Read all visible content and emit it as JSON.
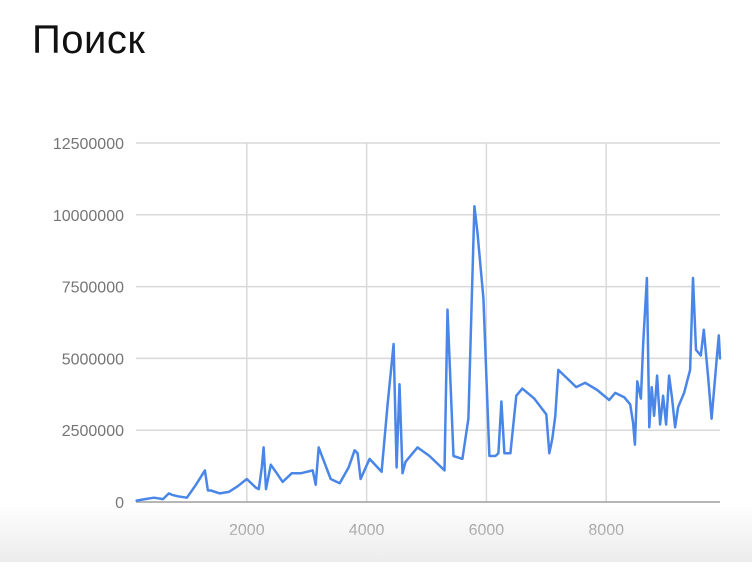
{
  "title": "Поиск",
  "chart_data": {
    "type": "line",
    "title": "Поиск",
    "xlabel": "",
    "ylabel": "",
    "xlim": [
      150,
      9900
    ],
    "ylim": [
      0,
      12500000
    ],
    "xticks": [
      2000,
      4000,
      6000,
      8000
    ],
    "xtick_labels": [
      "2000",
      "4000",
      "6000",
      "8000"
    ],
    "yticks": [
      0,
      2500000,
      5000000,
      7500000,
      10000000,
      12500000
    ],
    "ytick_labels": [
      "0",
      "2500000",
      "5000000",
      "7500000",
      "10000000",
      "12500000"
    ],
    "grid": true,
    "legend": "none",
    "line_color": "#4a86e8",
    "series": [
      {
        "x": [
          160,
          300,
          450,
          600,
          700,
          750,
          850,
          1000,
          1150,
          1300,
          1350,
          1400,
          1550,
          1700,
          1850,
          2000,
          2150,
          2200,
          2250,
          2280,
          2320,
          2400,
          2500,
          2600,
          2700,
          2750,
          2900,
          3100,
          3150,
          3200,
          3400,
          3550,
          3700,
          3800,
          3850,
          3900,
          4050,
          4250,
          4350,
          4450,
          4500,
          4550,
          4600,
          4650,
          4850,
          5050,
          5300,
          5350,
          5450,
          5600,
          5700,
          5800,
          5850,
          5950,
          6050,
          6150,
          6200,
          6250,
          6300,
          6350,
          6400,
          6500,
          6600,
          6800,
          7000,
          7050,
          7100,
          7150,
          7200,
          7350,
          7500,
          7650,
          7850,
          8050,
          8150,
          8300,
          8400,
          8450,
          8480,
          8520,
          8580,
          8620,
          8680,
          8720,
          8760,
          8800,
          8850,
          8900,
          8950,
          9000,
          9050,
          9100,
          9150,
          9200,
          9300,
          9400,
          9450,
          9500,
          9580,
          9630,
          9700,
          9760,
          9850,
          9880,
          9900
        ],
        "y": [
          50000,
          100000,
          150000,
          100000,
          300000,
          250000,
          200000,
          150000,
          600000,
          1100000,
          400000,
          400000,
          300000,
          350000,
          550000,
          800000,
          500000,
          450000,
          1200000,
          1900000,
          450000,
          1300000,
          1000000,
          700000,
          900000,
          1000000,
          1000000,
          1100000,
          600000,
          1900000,
          800000,
          650000,
          1200000,
          1800000,
          1700000,
          800000,
          1500000,
          1050000,
          3400000,
          5500000,
          1200000,
          4100000,
          1000000,
          1400000,
          1900000,
          1600000,
          1100000,
          6700000,
          1600000,
          1500000,
          2900000,
          10300000,
          9400000,
          7100000,
          1600000,
          1600000,
          1700000,
          3500000,
          1700000,
          1700000,
          1700000,
          3700000,
          3950000,
          3600000,
          3050000,
          1700000,
          2200000,
          3000000,
          4600000,
          4300000,
          4000000,
          4150000,
          3900000,
          3550000,
          3800000,
          3650000,
          3400000,
          2750000,
          2000000,
          4200000,
          3600000,
          5600000,
          7800000,
          2600000,
          4000000,
          3000000,
          4400000,
          2700000,
          3700000,
          2700000,
          4400000,
          3600000,
          2600000,
          3300000,
          3800000,
          4600000,
          7800000,
          5300000,
          5100000,
          6000000,
          4400000,
          2900000,
          5100000,
          5800000,
          5000000
        ]
      }
    ]
  }
}
